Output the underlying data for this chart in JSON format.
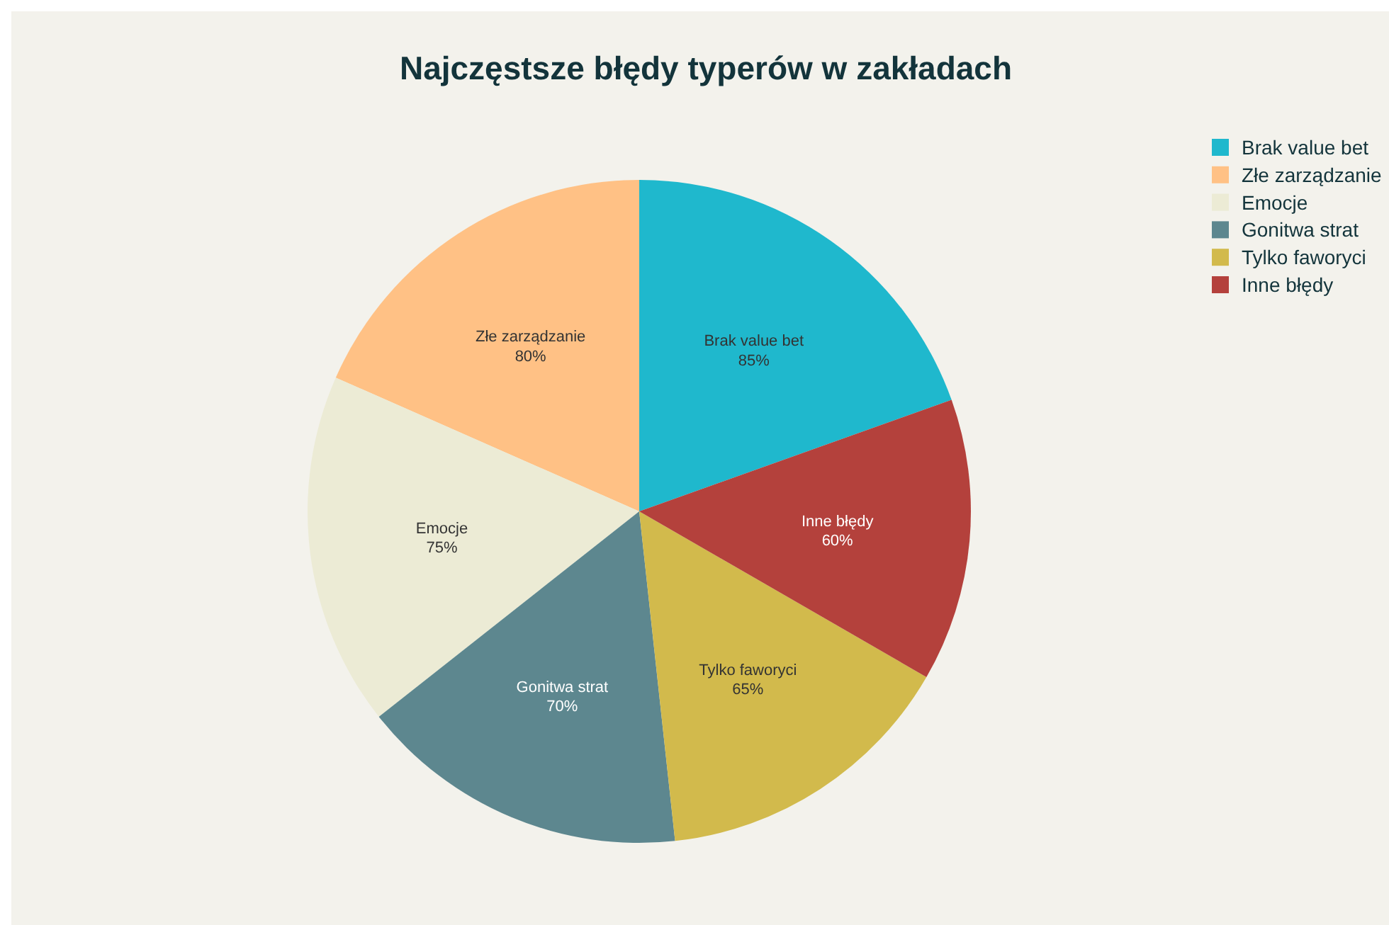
{
  "chart_data": {
    "type": "pie",
    "title": "Najczęstsze błędy typerów w zakładach",
    "categories": [
      "Brak value bet",
      "Złe zarządzanie",
      "Emocje",
      "Gonitwa strat",
      "Tylko faworyci",
      "Inne błędy"
    ],
    "values": [
      85,
      80,
      75,
      70,
      65,
      60
    ],
    "value_labels": [
      "85%",
      "80%",
      "75%",
      "70%",
      "65%",
      "60%"
    ],
    "colors": [
      "#1fb8cd",
      "#ffc185",
      "#ecebd5",
      "#5d878f",
      "#d2ba4c",
      "#b4413c"
    ],
    "legend": "top right"
  }
}
